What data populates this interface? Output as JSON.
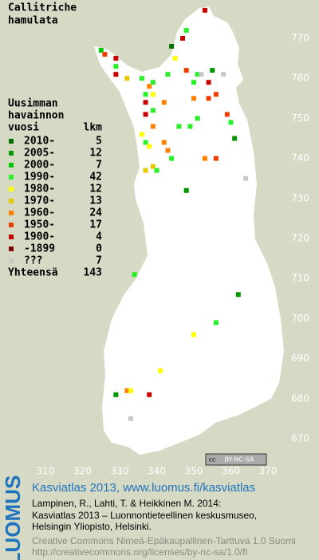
{
  "title": [
    "Callitriche",
    "hamulata"
  ],
  "legend": {
    "header": [
      "Uusimman",
      "havainnon",
      "vuosi"
    ],
    "count_header": "lkm",
    "rows": [
      {
        "label": "2010-",
        "count": 5,
        "color": "#006e00"
      },
      {
        "label": "2005-",
        "count": 12,
        "color": "#009600"
      },
      {
        "label": "2000-",
        "count": 7,
        "color": "#00c800"
      },
      {
        "label": "1990-",
        "count": 42,
        "color": "#28f028"
      },
      {
        "label": "1980-",
        "count": 12,
        "color": "#ffff00"
      },
      {
        "label": "1970-",
        "count": 13,
        "color": "#e6c800"
      },
      {
        "label": "1960-",
        "count": 24,
        "color": "#ff8000"
      },
      {
        "label": "1950-",
        "count": 17,
        "color": "#f03c00"
      },
      {
        "label": "1900-",
        "count": 4,
        "color": "#c80000"
      },
      {
        "label": "-1899",
        "count": 0,
        "color": "#820000"
      },
      {
        "label": "???",
        "count": 7,
        "color": "#c8c8c8"
      }
    ],
    "total_label": "Yhteensä",
    "total": 143
  },
  "map": {
    "xticks": [
      310,
      320,
      330,
      340,
      350,
      360,
      370
    ],
    "yticks": [
      670,
      680,
      690,
      700,
      710,
      720,
      730,
      740,
      750,
      760,
      770
    ],
    "records": [
      [
        353,
        777,
        8
      ],
      [
        347,
        770,
        8
      ],
      [
        348,
        772,
        3
      ],
      [
        344,
        768,
        0
      ],
      [
        345,
        765,
        4
      ],
      [
        325,
        767,
        2
      ],
      [
        326,
        766,
        7
      ],
      [
        329,
        765,
        8
      ],
      [
        329,
        763,
        3
      ],
      [
        329,
        761,
        8
      ],
      [
        332,
        760,
        5
      ],
      [
        336,
        760,
        3
      ],
      [
        338,
        758,
        6
      ],
      [
        339,
        759,
        3
      ],
      [
        343,
        761,
        3
      ],
      [
        348,
        762,
        7
      ],
      [
        351,
        761,
        3
      ],
      [
        355,
        762,
        1
      ],
      [
        352,
        761,
        10
      ],
      [
        350,
        759,
        3
      ],
      [
        354,
        759,
        8
      ],
      [
        358,
        761,
        10
      ],
      [
        337,
        756,
        3
      ],
      [
        339,
        756,
        4
      ],
      [
        342,
        754,
        6
      ],
      [
        337,
        754,
        8
      ],
      [
        339,
        752,
        3
      ],
      [
        337,
        751,
        8
      ],
      [
        350,
        755,
        6
      ],
      [
        354,
        755,
        7
      ],
      [
        356,
        756,
        7
      ],
      [
        359,
        751,
        7
      ],
      [
        360,
        749,
        3
      ],
      [
        361,
        745,
        1
      ],
      [
        351,
        750,
        3
      ],
      [
        349,
        748,
        3
      ],
      [
        346,
        748,
        3
      ],
      [
        339,
        748,
        6
      ],
      [
        336,
        746,
        4
      ],
      [
        342,
        744,
        6
      ],
      [
        337,
        744,
        3
      ],
      [
        338,
        743,
        4
      ],
      [
        343,
        742,
        6
      ],
      [
        344,
        740,
        3
      ],
      [
        339,
        738,
        5
      ],
      [
        337,
        737,
        5
      ],
      [
        340,
        737,
        3
      ],
      [
        353,
        740,
        6
      ],
      [
        356,
        740,
        7
      ],
      [
        348,
        732,
        1
      ],
      [
        364,
        735,
        10
      ],
      [
        334,
        711,
        3
      ],
      [
        362,
        706,
        1
      ],
      [
        356,
        699,
        3
      ],
      [
        350,
        696,
        4
      ],
      [
        341,
        687,
        4
      ],
      [
        329,
        681,
        1
      ],
      [
        332,
        682,
        6
      ],
      [
        333,
        682,
        4
      ],
      [
        338,
        681,
        8
      ],
      [
        333,
        675,
        10
      ]
    ]
  },
  "license_badge": [
    "cc",
    "BY-NC-SA"
  ],
  "footer": {
    "logo": "LUOMUS",
    "link": "Kasviatlas 2013, www.luomus.fi/kasviatlas",
    "citation": [
      "Lampinen, R., Lahti, T. & Heikkinen M. 2014:",
      "Kasviatlas 2013 – Luonnontieteellinen keskusmuseo,",
      "Helsingin Yliopisto, Helsinki."
    ],
    "license": [
      "Creative Commons Nimeä-Epäkaupallinen-Tarttuva 1.0 Suomi",
      "http://creativecommons.org/licenses/by-nc-sa/1.0/fi"
    ]
  }
}
